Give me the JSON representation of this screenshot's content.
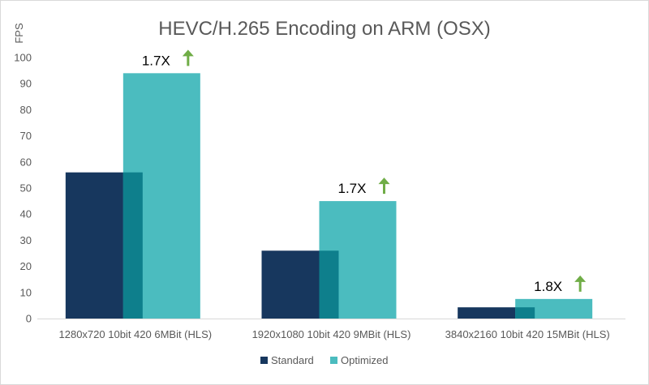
{
  "chart_data": {
    "type": "bar",
    "title": "HEVC/H.265 Encoding on ARM (OSX)",
    "ylabel": "FPS",
    "xlabel": "",
    "ylim": [
      0,
      100
    ],
    "yticks": [
      0,
      10,
      20,
      30,
      40,
      50,
      60,
      70,
      80,
      90,
      100
    ],
    "grid": false,
    "legend_position": "bottom",
    "categories": [
      "1280x720 10bit 420 6MBit (HLS)",
      "1920x1080 10bit 420 9MBit (HLS)",
      "3840x2160 10bit 420 15MBit (HLS)"
    ],
    "series": [
      {
        "name": "Standard",
        "values": [
          56,
          26,
          4.3
        ],
        "color": "#17375e"
      },
      {
        "name": "Optimized",
        "values": [
          94,
          45,
          7.5
        ],
        "color": "#4bbcbf"
      }
    ],
    "overlap_color": "#0e7f8c",
    "annotations": [
      {
        "text": "1.7X",
        "category_index": 0,
        "arrow_color": "#70ad47"
      },
      {
        "text": "1.7X",
        "category_index": 1,
        "arrow_color": "#70ad47"
      },
      {
        "text": "1.8X",
        "category_index": 2,
        "arrow_color": "#70ad47"
      }
    ]
  }
}
